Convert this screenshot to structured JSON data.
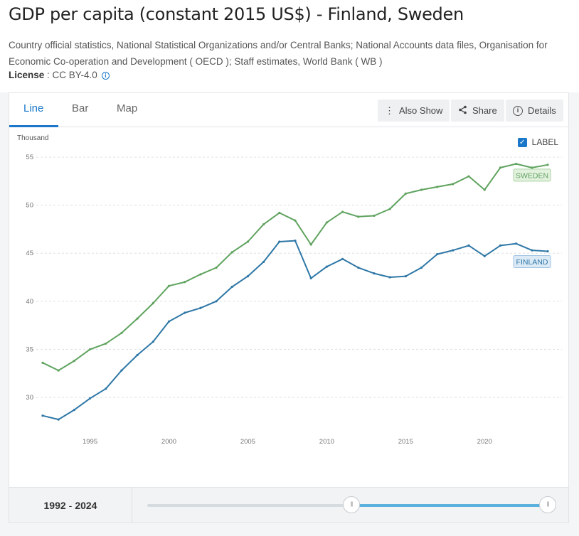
{
  "title": "GDP per capita (constant 2015 US$) - Finland, Sweden",
  "source": "Country official statistics, National Statistical Organizations and/or Central Banks; National Accounts data files, Organisation for Economic Co-operation and Development ( OECD ); Staff estimates, World Bank ( WB )",
  "license": {
    "label": "License",
    "value": " : CC BY-4.0"
  },
  "tabs": [
    {
      "label": "Line"
    },
    {
      "label": "Bar"
    },
    {
      "label": "Map"
    }
  ],
  "toolbar": {
    "also_show": "Also Show",
    "share": "Share",
    "details": "Details"
  },
  "label_toggle": "LABEL",
  "range": {
    "start": "1992",
    "end": "2024"
  },
  "colors": {
    "accent": "#1a77c9",
    "sweden": "#5fa35f",
    "finland": "#2e77a6"
  },
  "chart_data": {
    "type": "line",
    "ylabel": "Thousand",
    "ylim": [
      26.5,
      56
    ],
    "yticks": [
      30,
      35,
      40,
      45,
      50,
      55
    ],
    "xticks": [
      1995,
      2000,
      2005,
      2010,
      2015,
      2020
    ],
    "x": [
      1992,
      1993,
      1994,
      1995,
      1996,
      1997,
      1998,
      1999,
      2000,
      2001,
      2002,
      2003,
      2004,
      2005,
      2006,
      2007,
      2008,
      2009,
      2010,
      2011,
      2012,
      2013,
      2014,
      2015,
      2016,
      2017,
      2018,
      2019,
      2020,
      2021,
      2022,
      2023,
      2024
    ],
    "series": [
      {
        "name": "SWEDEN",
        "color": "#5fa35f",
        "values": [
          33.6,
          32.8,
          33.8,
          35.0,
          35.6,
          36.7,
          38.2,
          39.8,
          41.6,
          42.0,
          42.8,
          43.5,
          45.1,
          46.2,
          48.0,
          49.2,
          48.4,
          45.9,
          48.2,
          49.3,
          48.8,
          48.9,
          49.6,
          51.2,
          51.6,
          51.9,
          52.2,
          53.0,
          51.6,
          53.9,
          54.3,
          53.9,
          54.2
        ]
      },
      {
        "name": "FINLAND",
        "color": "#2e77a6",
        "values": [
          28.1,
          27.7,
          28.7,
          29.9,
          30.9,
          32.8,
          34.4,
          35.8,
          37.9,
          38.8,
          39.3,
          40.0,
          41.5,
          42.6,
          44.1,
          46.2,
          46.3,
          42.4,
          43.6,
          44.4,
          43.5,
          42.9,
          42.5,
          42.6,
          43.5,
          44.9,
          45.3,
          45.8,
          44.7,
          45.8,
          46.0,
          45.3,
          45.2
        ]
      }
    ]
  }
}
